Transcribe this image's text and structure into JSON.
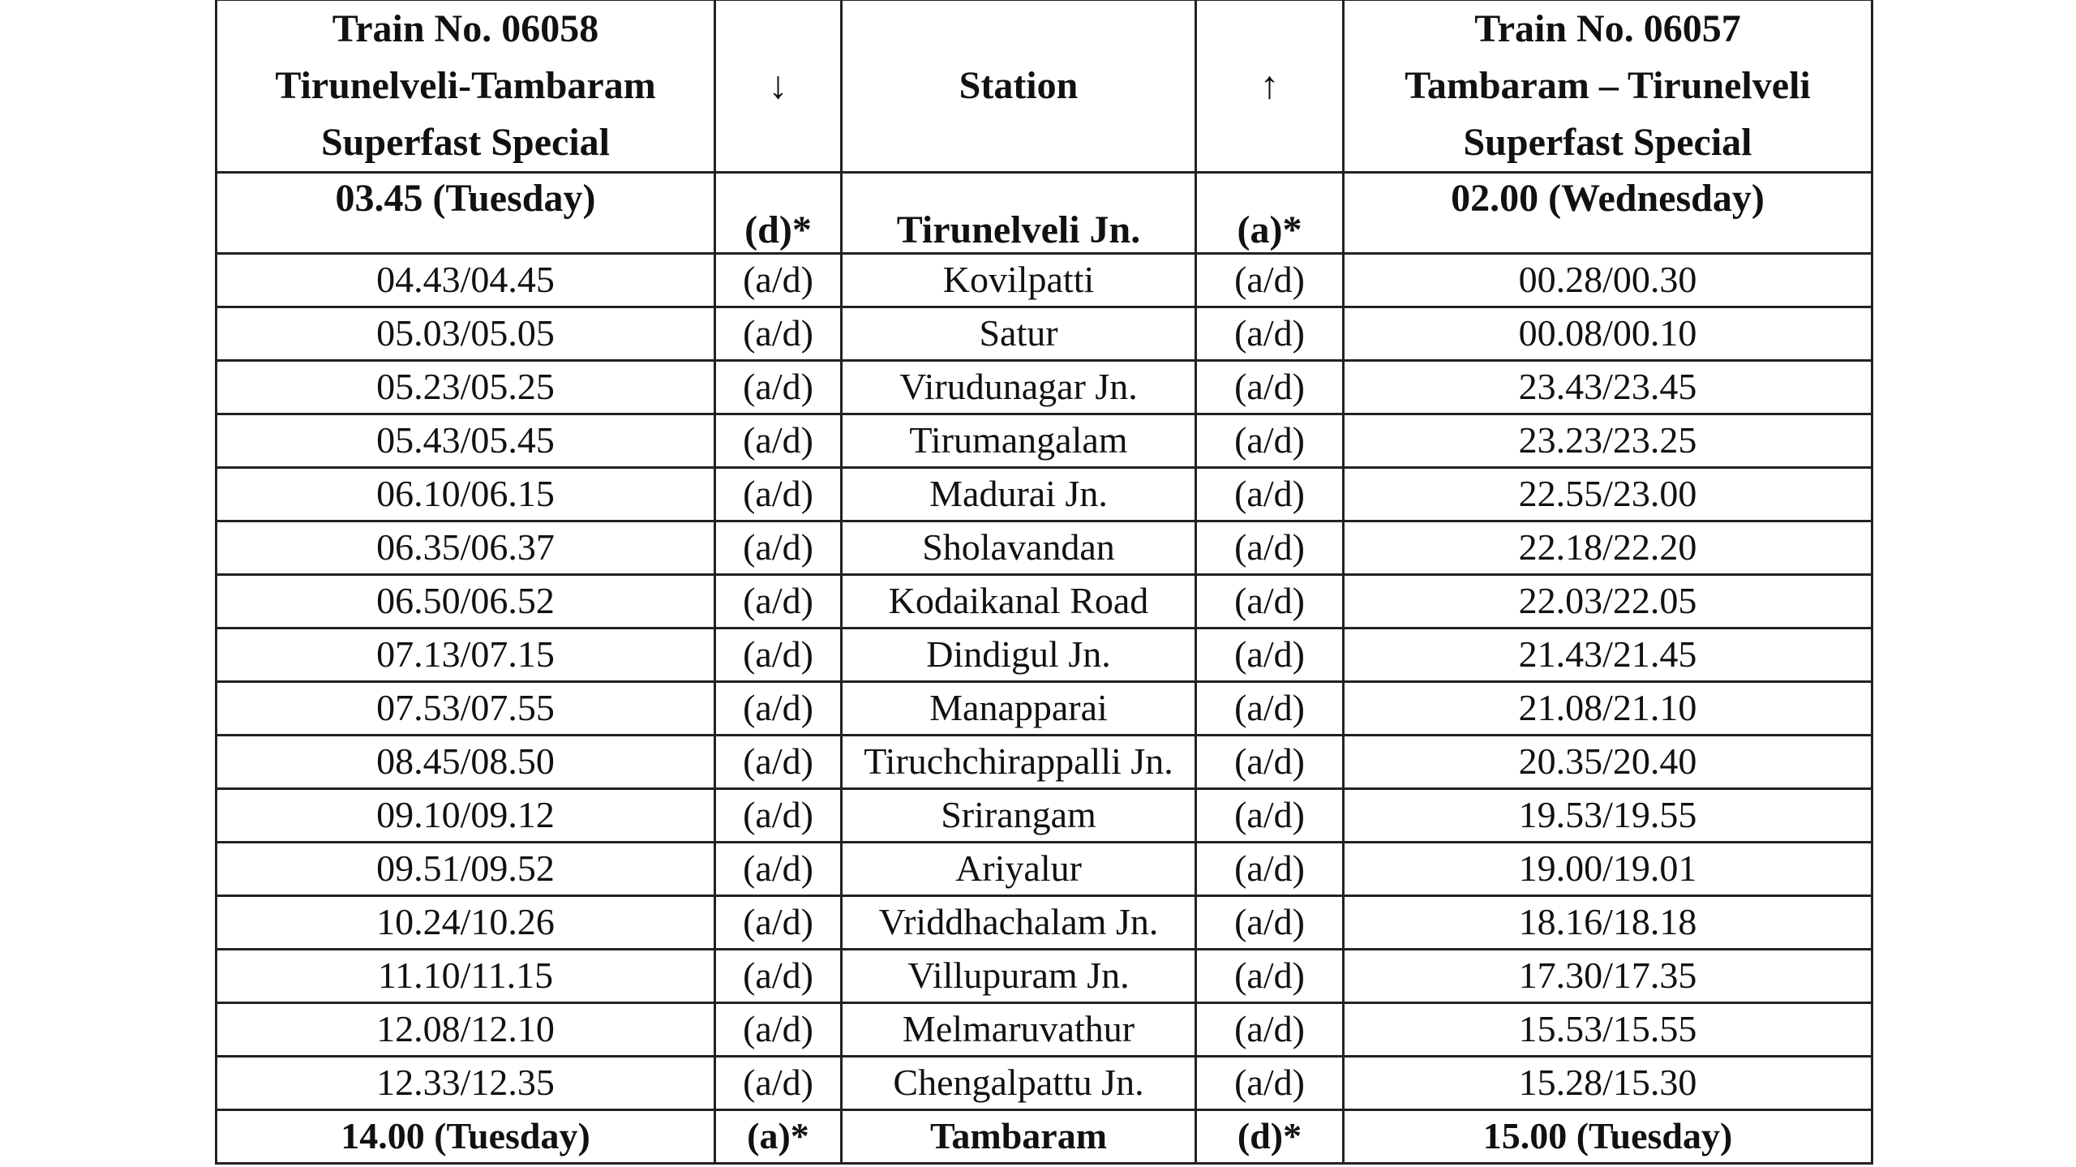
{
  "table": {
    "header": [
      [
        "Train No. 06058",
        "Tirunelveli-Tambaram",
        "Superfast Special"
      ],
      [
        "↓"
      ],
      [
        "Station"
      ],
      [
        "↑"
      ],
      [
        "Train No. 06057",
        "Tambaram – Tirunelveli",
        "Superfast Special"
      ]
    ],
    "rows": [
      [
        "03.45 (Tuesday)",
        "(d)*",
        "Tirunelveli Jn.",
        "(a)*",
        "02.00 (Wednesday)"
      ],
      [
        "04.43/04.45",
        "(a/d)",
        "Kovilpatti",
        "(a/d)",
        "00.28/00.30"
      ],
      [
        "05.03/05.05",
        "(a/d)",
        "Satur",
        "(a/d)",
        "00.08/00.10"
      ],
      [
        "05.23/05.25",
        "(a/d)",
        "Virudunagar Jn.",
        "(a/d)",
        "23.43/23.45"
      ],
      [
        "05.43/05.45",
        "(a/d)",
        "Tirumangalam",
        "(a/d)",
        "23.23/23.25"
      ],
      [
        "06.10/06.15",
        "(a/d)",
        "Madurai Jn.",
        "(a/d)",
        "22.55/23.00"
      ],
      [
        "06.35/06.37",
        "(a/d)",
        "Sholavandan",
        "(a/d)",
        "22.18/22.20"
      ],
      [
        "06.50/06.52",
        "(a/d)",
        "Kodaikanal Road",
        "(a/d)",
        "22.03/22.05"
      ],
      [
        "07.13/07.15",
        "(a/d)",
        "Dindigul Jn.",
        "(a/d)",
        "21.43/21.45"
      ],
      [
        "07.53/07.55",
        "(a/d)",
        "Manapparai",
        "(a/d)",
        "21.08/21.10"
      ],
      [
        "08.45/08.50",
        "(a/d)",
        "Tiruchchirappalli Jn.",
        "(a/d)",
        "20.35/20.40"
      ],
      [
        "09.10/09.12",
        "(a/d)",
        "Srirangam",
        "(a/d)",
        "19.53/19.55"
      ],
      [
        "09.51/09.52",
        "(a/d)",
        "Ariyalur",
        "(a/d)",
        "19.00/19.01"
      ],
      [
        "10.24/10.26",
        "(a/d)",
        "Vriddhachalam Jn.",
        "(a/d)",
        "18.16/18.18"
      ],
      [
        "11.10/11.15",
        "(a/d)",
        "Villupuram Jn.",
        "(a/d)",
        "17.30/17.35"
      ],
      [
        "12.08/12.10",
        "(a/d)",
        "Melmaruvathur",
        "(a/d)",
        "15.53/15.55"
      ],
      [
        "12.33/12.35",
        "(a/d)",
        "Chengalpattu Jn.",
        "(a/d)",
        "15.28/15.30"
      ],
      [
        "14.00 (Tuesday)",
        "(a)*",
        "Tambaram",
        "(d)*",
        "15.00 (Tuesday)"
      ]
    ]
  }
}
